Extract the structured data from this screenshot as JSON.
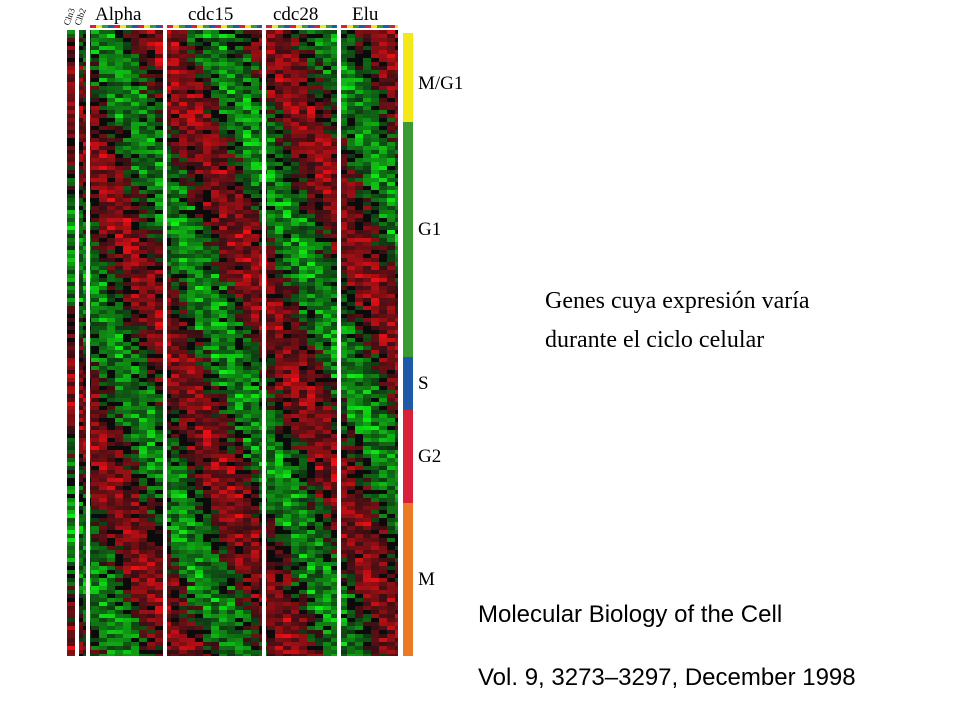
{
  "figure": {
    "lane_labels": [
      "Cln3",
      "Clb2"
    ],
    "experiments": [
      "Alpha",
      "cdc15",
      "cdc28",
      "Elu"
    ],
    "phases": [
      "M/G1",
      "G1",
      "S",
      "G2",
      "M"
    ]
  },
  "caption": [
    "Genes cuya expresión varía",
    "durante el ciclo celular"
  ],
  "citation": {
    "journal": "Molecular Biology of the Cell",
    "reference": "Vol. 9, 3273–3297, December 1998"
  }
}
